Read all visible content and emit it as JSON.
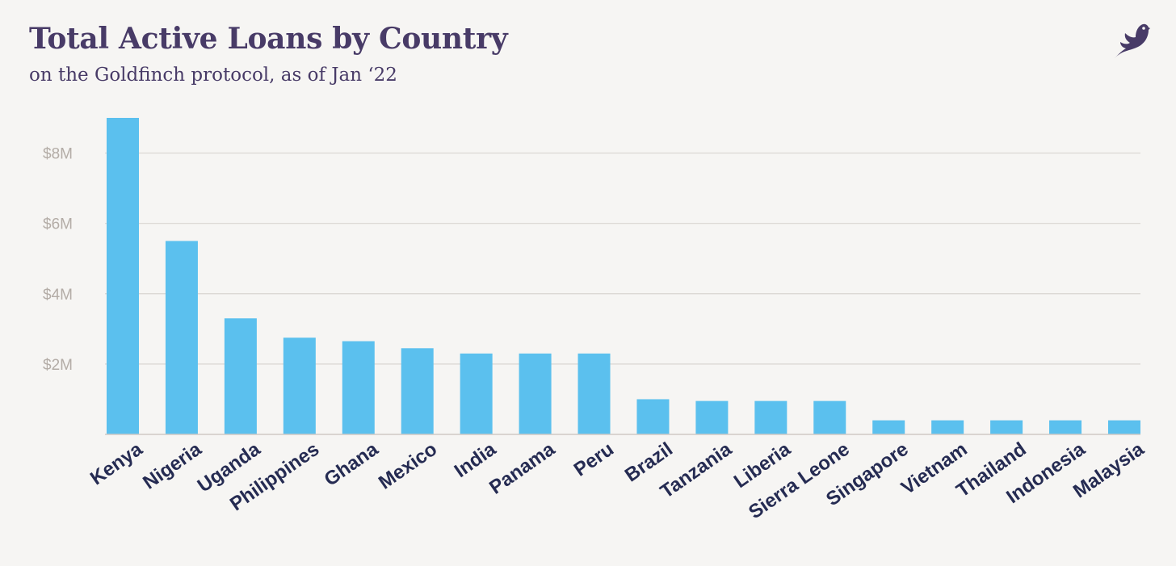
{
  "chart_data": {
    "type": "bar",
    "title": "Total Active Loans by Country",
    "subtitle": "on the Goldfinch protocol, as of Jan ‘22",
    "categories": [
      "Kenya",
      "Nigeria",
      "Uganda",
      "Philippines",
      "Ghana",
      "Mexico",
      "India",
      "Panama",
      "Peru",
      "Brazil",
      "Tanzania",
      "Liberia",
      "Sierra Leone",
      "Singapore",
      "Vietnam",
      "Thailand",
      "Indonesia",
      "Malaysia"
    ],
    "values": [
      9.0,
      5.5,
      3.3,
      2.75,
      2.65,
      2.45,
      2.3,
      2.3,
      2.3,
      1.0,
      0.95,
      0.95,
      0.95,
      0.4,
      0.4,
      0.4,
      0.4,
      0.4
    ],
    "unit": "$M",
    "ylim": [
      0,
      9
    ],
    "yticks": [
      {
        "value": 2,
        "label": "$2M"
      },
      {
        "value": 4,
        "label": "$4M"
      },
      {
        "value": 6,
        "label": "$6M"
      },
      {
        "value": 8,
        "label": "$8M"
      }
    ],
    "grid": true,
    "legend": "none",
    "bar_color": "#5bc0ee",
    "grid_color": "#d9d5d1",
    "axis_color": "#cfcac5",
    "ytick_color": "#b3aca6",
    "xtick_color": "#252b52",
    "title_color": "#483b67"
  },
  "brand": {
    "logo": "goldfinch-bird-icon"
  }
}
